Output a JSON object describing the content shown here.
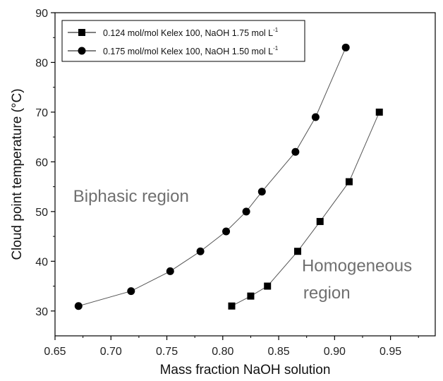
{
  "chart_data": {
    "type": "line",
    "xlabel": "Mass fraction NaOH solution",
    "ylabel": "Cloud point temperature (°C)",
    "xlim": [
      0.65,
      0.99
    ],
    "ylim": [
      25,
      90
    ],
    "x_ticks": [
      "0.65",
      "0.70",
      "0.75",
      "0.80",
      "0.85",
      "0.90",
      "0.95"
    ],
    "x_tick_values": [
      0.65,
      0.7,
      0.75,
      0.8,
      0.85,
      0.9,
      0.95
    ],
    "y_ticks": [
      "30",
      "40",
      "50",
      "60",
      "70",
      "80",
      "90"
    ],
    "y_tick_values": [
      30,
      40,
      50,
      60,
      70,
      80,
      90
    ],
    "legend_position": "top-left",
    "grid": false,
    "series": [
      {
        "name": "0.124 mol/mol Kelex 100, NaOH 1.75 mol L",
        "name_sup": "-1",
        "marker": "square",
        "color": "#000000",
        "x": [
          0.808,
          0.825,
          0.84,
          0.867,
          0.887,
          0.913,
          0.94
        ],
        "y": [
          31,
          33,
          35,
          42,
          48,
          56,
          70
        ]
      },
      {
        "name": "0.175 mol/mol Kelex 100, NaOH 1.50 mol L",
        "name_sup": "-1",
        "marker": "circle",
        "color": "#000000",
        "x": [
          0.671,
          0.718,
          0.753,
          0.78,
          0.803,
          0.821,
          0.835,
          0.865,
          0.883,
          0.91
        ],
        "y": [
          31,
          34,
          38,
          42,
          46,
          50,
          54,
          62,
          69,
          83
        ]
      }
    ],
    "annotations": [
      {
        "text": "Biphasic region",
        "x": 0.718,
        "y": 52
      },
      {
        "text": "Homogeneous",
        "x": 0.92,
        "y": 38
      },
      {
        "text": "region",
        "x": 0.893,
        "y": 32.5
      }
    ]
  }
}
